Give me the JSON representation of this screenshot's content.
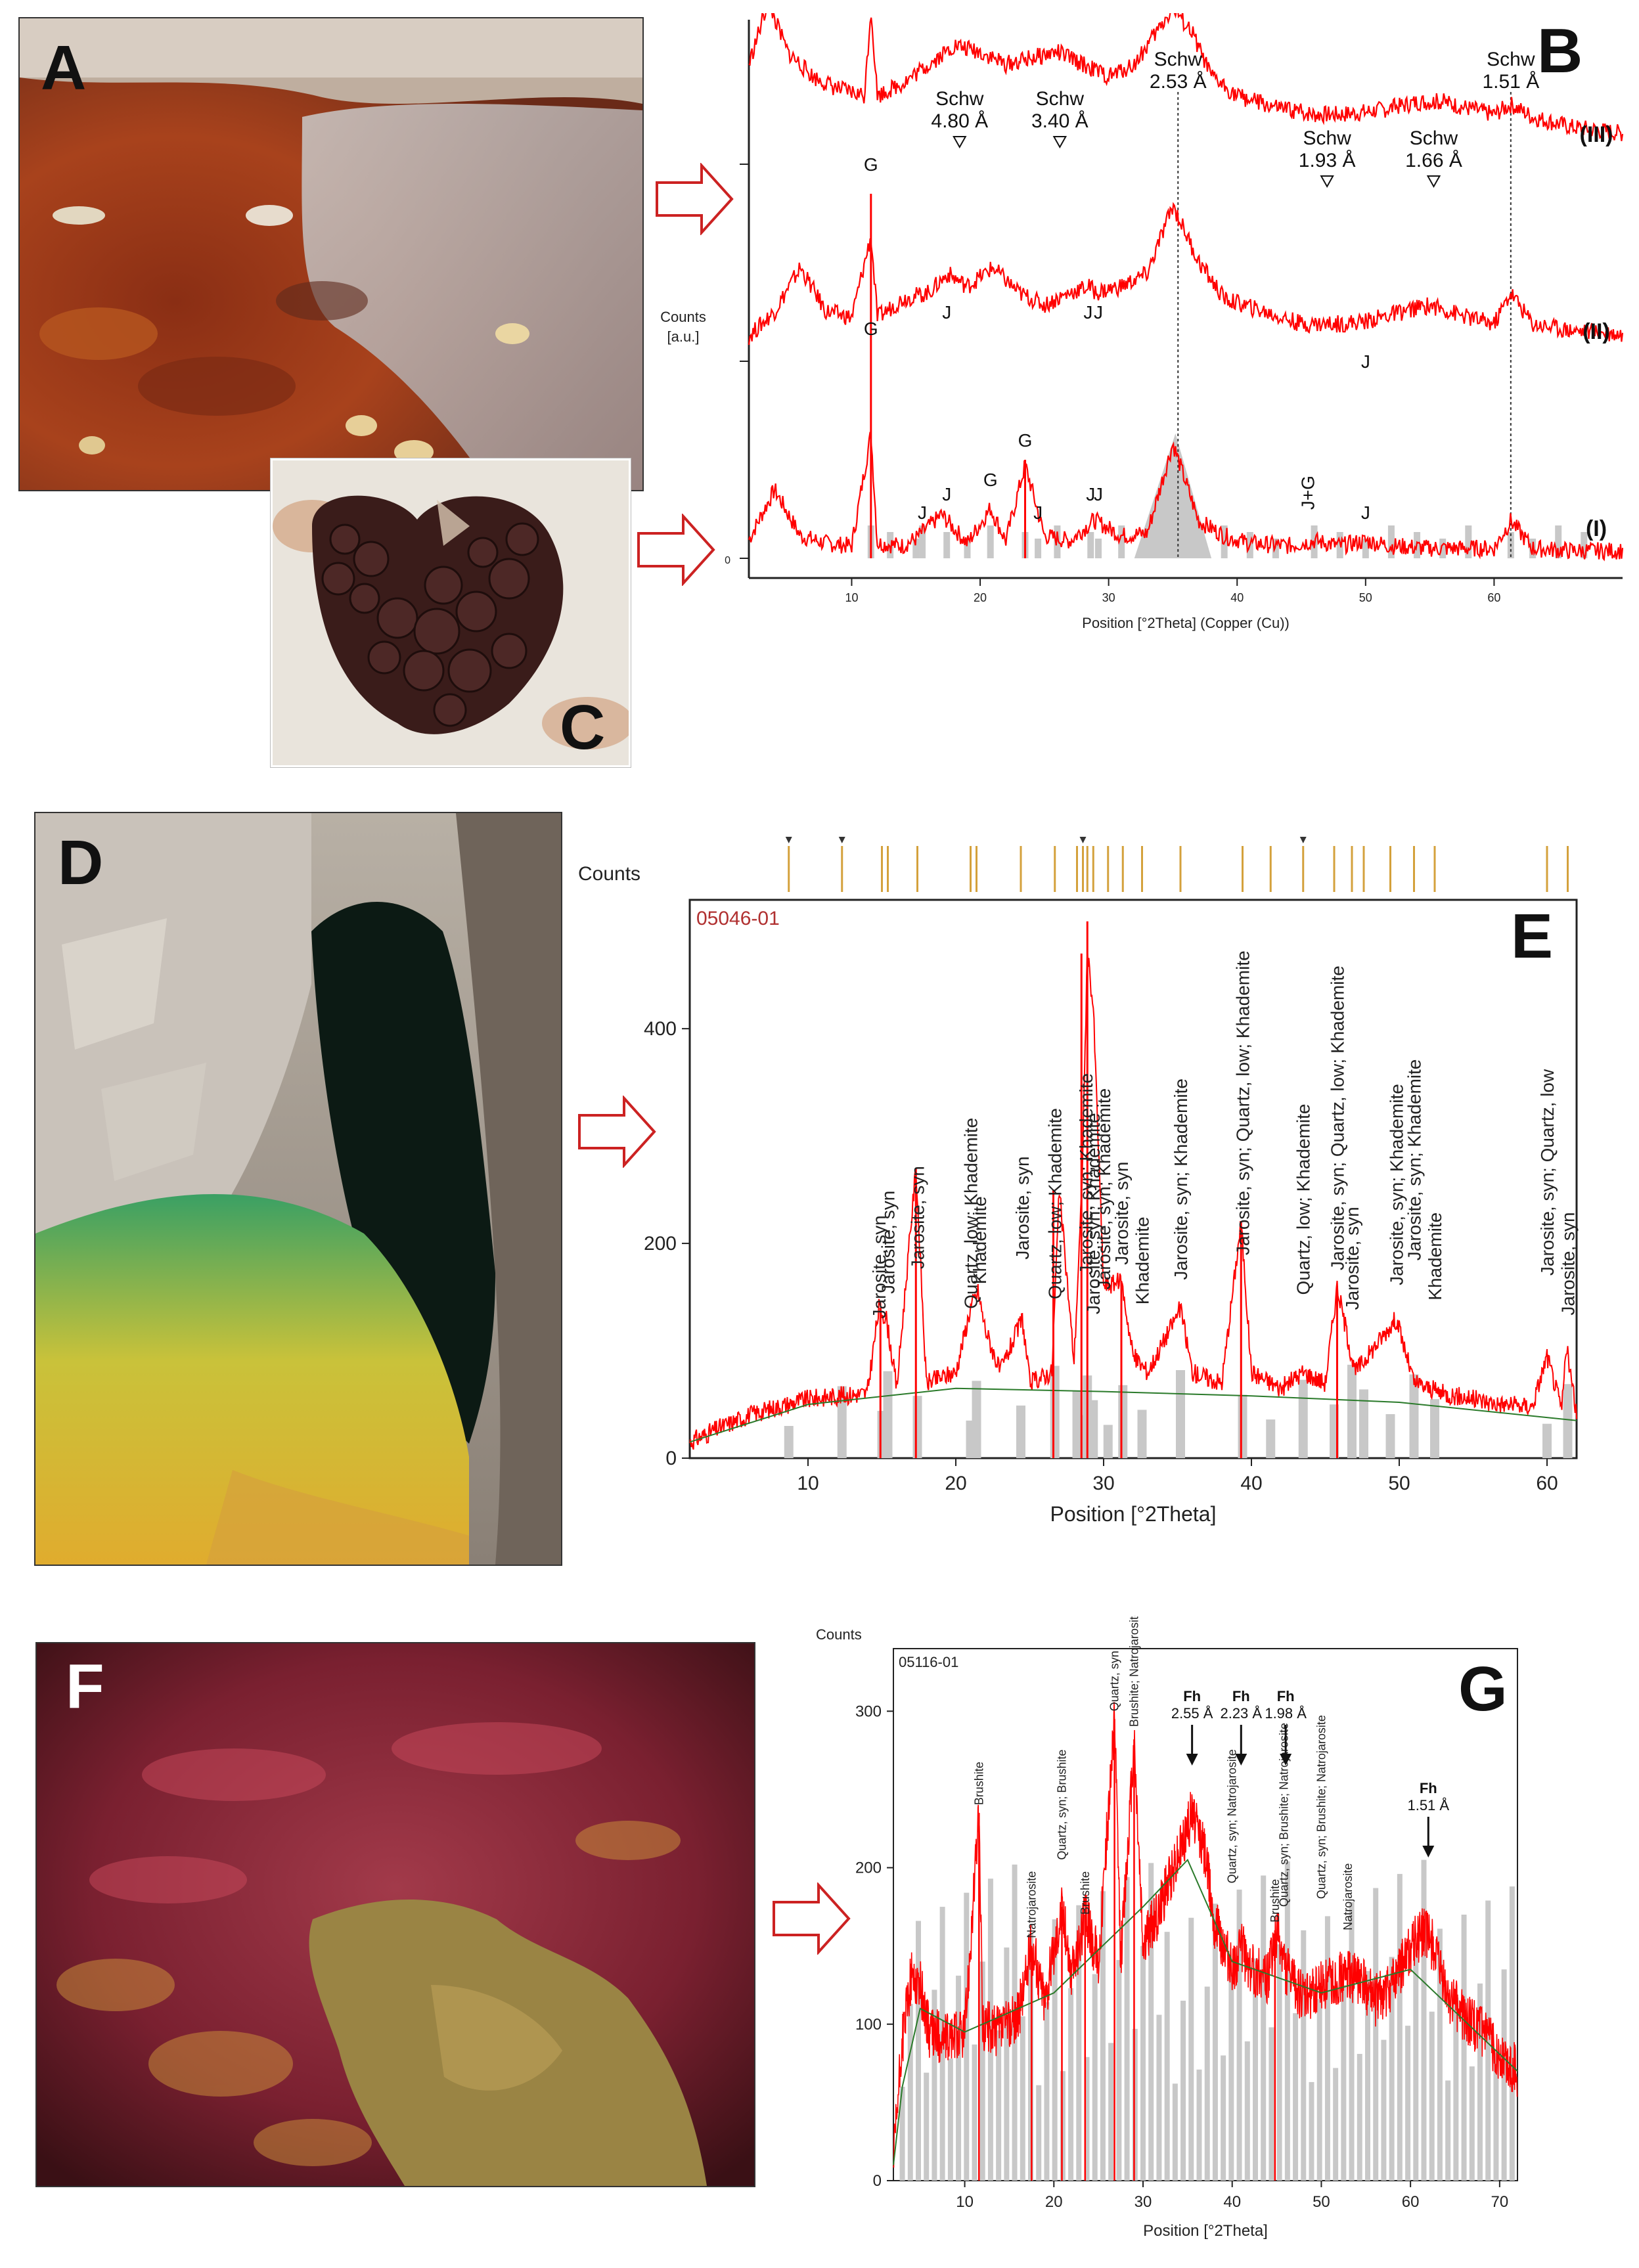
{
  "panels": {
    "a": {
      "letter": "A"
    },
    "b": {
      "letter": "B"
    },
    "c": {
      "letter": "C"
    },
    "d": {
      "letter": "D"
    },
    "e": {
      "letter": "E"
    },
    "f": {
      "letter": "F"
    },
    "g": {
      "letter": "G"
    }
  },
  "colors": {
    "trace": "#ff0000",
    "ref": "#c8c8c8",
    "arrow": "#cc2222",
    "marker": "#d4a13c",
    "frame_red": "#b03030"
  },
  "chart_data": [
    {
      "id": "B",
      "type": "line",
      "ylabel": "Counts\n[a.u.]",
      "ylabel_lines": [
        "Counts",
        "[a.u.]"
      ],
      "xlabel": "Position [°2Theta] (Copper (Cu))",
      "xlim": [
        2,
        70
      ],
      "xticks": [
        10,
        20,
        30,
        40,
        50,
        60
      ],
      "y_tick_zero": "0",
      "series": [
        {
          "name": "(I)",
          "values_note": "",
          "x": [
            2,
            4,
            6,
            8,
            10,
            11.5,
            12,
            14,
            15,
            17,
            19,
            20.8,
            22,
            23.5,
            25,
            27,
            28.8,
            29,
            31,
            33,
            35,
            37,
            39,
            41,
            44,
            46,
            48,
            50,
            52,
            55,
            58,
            60,
            61.3,
            63,
            66,
            70
          ],
          "y": [
            15,
            55,
            18,
            12,
            10,
            100,
            12,
            10,
            16,
            35,
            12,
            40,
            14,
            75,
            18,
            14,
            30,
            30,
            18,
            20,
            92,
            30,
            18,
            12,
            10,
            14,
            10,
            14,
            10,
            8,
            8,
            8,
            30,
            8,
            6,
            6
          ]
        },
        {
          "name": "(II)",
          "x": [
            2,
            4,
            6,
            8,
            10,
            11.5,
            12,
            14,
            16,
            17.5,
            19,
            21,
            23,
            25,
            27,
            28.5,
            29,
            31,
            33,
            35,
            37,
            39,
            42,
            45,
            48,
            50,
            53,
            55,
            58,
            60,
            61.3,
            63,
            66,
            70
          ],
          "y": [
            20,
            40,
            75,
            40,
            35,
            100,
            35,
            50,
            55,
            70,
            60,
            75,
            55,
            45,
            55,
            60,
            55,
            60,
            70,
            125,
            80,
            50,
            40,
            30,
            30,
            32,
            40,
            45,
            35,
            30,
            55,
            30,
            25,
            22
          ]
        },
        {
          "name": "(III)",
          "x": [
            2,
            3.5,
            5,
            7,
            9,
            11,
            11.5,
            12,
            14,
            16,
            18,
            20,
            22,
            24,
            26,
            28,
            30,
            32,
            34,
            35,
            36.5,
            38,
            40,
            43,
            46,
            48,
            50,
            52,
            54,
            56,
            58,
            60,
            61.3,
            63,
            66,
            70
          ],
          "y": [
            80,
            130,
            90,
            70,
            60,
            55,
            125,
            55,
            65,
            80,
            95,
            90,
            80,
            85,
            90,
            80,
            70,
            80,
            110,
            125,
            105,
            70,
            55,
            45,
            40,
            40,
            42,
            45,
            50,
            50,
            45,
            40,
            48,
            38,
            30,
            25
          ]
        }
      ],
      "annotations": {
        "schw": [
          {
            "label": "Schw",
            "value": "4.80 Å",
            "x": 18.4
          },
          {
            "label": "Schw",
            "value": "3.40 Å",
            "x": 26.2
          },
          {
            "label": "Schw",
            "value": "2.53 Å",
            "x": 35.4
          },
          {
            "label": "Schw",
            "value": "1.93 Å",
            "x": 47.0
          },
          {
            "label": "Schw",
            "value": "1.66 Å",
            "x": 55.3
          },
          {
            "label": "Schw",
            "value": "1.51 Å",
            "x": 61.3
          }
        ],
        "peaks_III": [
          {
            "text": "G",
            "x": 11.5
          }
        ],
        "peaks_II": [
          {
            "text": "G",
            "x": 11.5
          },
          {
            "text": "J",
            "x": 17.4
          },
          {
            "text": "J",
            "x": 28.4
          },
          {
            "text": "J",
            "x": 29.2
          },
          {
            "text": "J",
            "x": 50.0
          }
        ],
        "peaks_I": [
          {
            "text": "J",
            "x": 15.5
          },
          {
            "text": "J",
            "x": 17.4
          },
          {
            "text": "G",
            "x": 20.8
          },
          {
            "text": "G",
            "x": 23.5
          },
          {
            "text": "J",
            "x": 24.5
          },
          {
            "text": "J",
            "x": 28.6
          },
          {
            "text": "J",
            "x": 29.2
          },
          {
            "text": "J+G",
            "x": 46.0
          },
          {
            "text": "J",
            "x": 50.0
          }
        ]
      }
    },
    {
      "id": "E",
      "type": "line",
      "header_label": "Counts",
      "sample_id": "05046-01",
      "xlabel": "Position [°2Theta]",
      "xlim": [
        2,
        62
      ],
      "ylim": [
        0,
        520
      ],
      "xticks": [
        10,
        20,
        30,
        40,
        50,
        60
      ],
      "yticks": [
        0,
        200,
        400
      ],
      "series": [
        {
          "name": "observed",
          "x": [
            2,
            4,
            6,
            8,
            10,
            12,
            14,
            14.8,
            15.3,
            16,
            17.3,
            18,
            20,
            21,
            21.5,
            22,
            23,
            24.5,
            25,
            26.5,
            27,
            28,
            28.5,
            28.9,
            29.3,
            30,
            31.2,
            32,
            33,
            35.2,
            36,
            38,
            39.3,
            40,
            42,
            43.5,
            45,
            45.8,
            47,
            49.8,
            51,
            53,
            55,
            57,
            59,
            60,
            61,
            61.3,
            62
          ],
          "y": [
            15,
            28,
            40,
            48,
            55,
            58,
            60,
            140,
            130,
            65,
            270,
            70,
            80,
            140,
            155,
            120,
            80,
            130,
            70,
            80,
            250,
            90,
            240,
            470,
            420,
            160,
            165,
            95,
            80,
            140,
            80,
            70,
            220,
            80,
            65,
            80,
            70,
            160,
            80,
            130,
            70,
            60,
            55,
            50,
            48,
            95,
            45,
            105,
            40
          ]
        },
        {
          "name": "background",
          "x": [
            2,
            10,
            20,
            30,
            40,
            50,
            62
          ],
          "y": [
            15,
            50,
            65,
            62,
            58,
            52,
            35
          ]
        }
      ],
      "ref_sticks_x": [
        8.7,
        12.3,
        15.0,
        15.4,
        17.4,
        21.0,
        21.4,
        24.4,
        26.7,
        28.2,
        28.6,
        28.9,
        29.3,
        30.3,
        31.3,
        32.6,
        35.2,
        39.4,
        41.3,
        43.5,
        45.6,
        46.8,
        47.6,
        49.4,
        51.0,
        52.4,
        60.0,
        61.4
      ],
      "ref_markers_x": [
        8.7,
        12.3,
        28.6,
        43.5
      ],
      "peak_labels": [
        {
          "text": "Jarosite, syn",
          "x": 14.8
        },
        {
          "text": "Jarosite, syn",
          "x": 15.4
        },
        {
          "text": "Jarosite, syn",
          "x": 17.4
        },
        {
          "text": "Quartz, low; Khademite",
          "x": 21.0
        },
        {
          "text": "Khademite",
          "x": 21.6
        },
        {
          "text": "Jarosite, syn",
          "x": 24.5
        },
        {
          "text": "Quartz, low; Khademite",
          "x": 26.7
        },
        {
          "text": "Jarosite, syn; Khademite",
          "x": 28.8
        },
        {
          "text": "Jarosite, syn; Khademite",
          "x": 29.3
        },
        {
          "text": "Jarosite, syn; Khademite",
          "x": 30.0
        },
        {
          "text": "Jarosite, syn",
          "x": 31.2
        },
        {
          "text": "Khademite",
          "x": 32.6
        },
        {
          "text": "Jarosite, syn; Khademite",
          "x": 35.2
        },
        {
          "text": "Jarosite, syn; Quartz, low; Khademite",
          "x": 39.4
        },
        {
          "text": "Quartz, low; Khademite",
          "x": 43.5
        },
        {
          "text": "Jarosite, syn; Quartz, low; Khademite",
          "x": 45.8
        },
        {
          "text": "Jarosite, syn",
          "x": 46.8
        },
        {
          "text": "Jarosite, syn; Khademite",
          "x": 49.8
        },
        {
          "text": "Jarosite, syn; Khademite",
          "x": 51.0
        },
        {
          "text": "Khademite",
          "x": 52.4
        },
        {
          "text": "Jarosite, syn; Quartz, low",
          "x": 60.0
        },
        {
          "text": "Jarosite, syn",
          "x": 61.4
        }
      ]
    },
    {
      "id": "G",
      "type": "line",
      "header_label": "Counts",
      "sample_id": "05116-01",
      "xlabel": "Position [°2Theta]",
      "xlim": [
        2,
        72
      ],
      "ylim": [
        0,
        340
      ],
      "xticks": [
        10,
        20,
        30,
        40,
        50,
        60,
        70
      ],
      "yticks": [
        0,
        100,
        200,
        300
      ],
      "series": [
        {
          "name": "observed",
          "x": [
            2,
            3,
            4,
            5,
            6,
            8,
            10,
            11.6,
            12,
            14,
            16,
            17.5,
            19,
            20.9,
            22,
            23.5,
            25,
            26.8,
            27.5,
            29,
            30,
            32,
            34,
            35.5,
            37,
            38,
            40,
            41,
            42,
            44,
            45,
            46,
            48,
            50,
            52,
            54,
            56,
            58,
            60,
            61.5,
            62.5,
            64,
            66,
            68,
            70,
            72
          ],
          "y": [
            10,
            90,
            130,
            125,
            95,
            90,
            95,
            235,
            100,
            95,
            105,
            150,
            115,
            175,
            130,
            170,
            140,
            295,
            140,
            280,
            150,
            175,
            210,
            235,
            210,
            165,
            135,
            150,
            135,
            130,
            160,
            135,
            115,
            125,
            130,
            130,
            115,
            125,
            150,
            160,
            150,
            120,
            105,
            95,
            80,
            70
          ]
        },
        {
          "name": "background",
          "x": [
            2,
            3,
            5,
            10,
            20,
            30,
            35,
            40,
            50,
            60,
            72
          ],
          "y": [
            10,
            60,
            110,
            95,
            120,
            175,
            205,
            140,
            120,
            135,
            70
          ]
        }
      ],
      "fh_annotations": [
        {
          "label": "Fh",
          "value": "2.55 Å",
          "x": 35.5
        },
        {
          "label": "Fh",
          "value": "2.23 Å",
          "x": 41.0
        },
        {
          "label": "Fh",
          "value": "1.98 Å",
          "x": 46.0
        },
        {
          "label": "Fh",
          "value": "1.51 Å",
          "x": 62.0
        }
      ],
      "peak_labels": [
        {
          "text": "Brushite",
          "x": 11.6
        },
        {
          "text": "Natrojarosite",
          "x": 17.5
        },
        {
          "text": "Quartz, syn; Brushite",
          "x": 20.9
        },
        {
          "text": "Brushite",
          "x": 23.5
        },
        {
          "text": "Quartz, syn",
          "x": 26.8
        },
        {
          "text": "Brushite; Natrojarosite",
          "x": 29.0
        },
        {
          "text": "Quartz, syn; Natrojarosite",
          "x": 40.0
        },
        {
          "text": "Brushite",
          "x": 44.8
        },
        {
          "text": "Quartz, syn; Brushite; Natrojarosite",
          "x": 45.8
        },
        {
          "text": "Quartz, syn; Brushite; Natrojarosite",
          "x": 50.0
        },
        {
          "text": "Natrojarosite",
          "x": 53.0
        }
      ]
    }
  ]
}
